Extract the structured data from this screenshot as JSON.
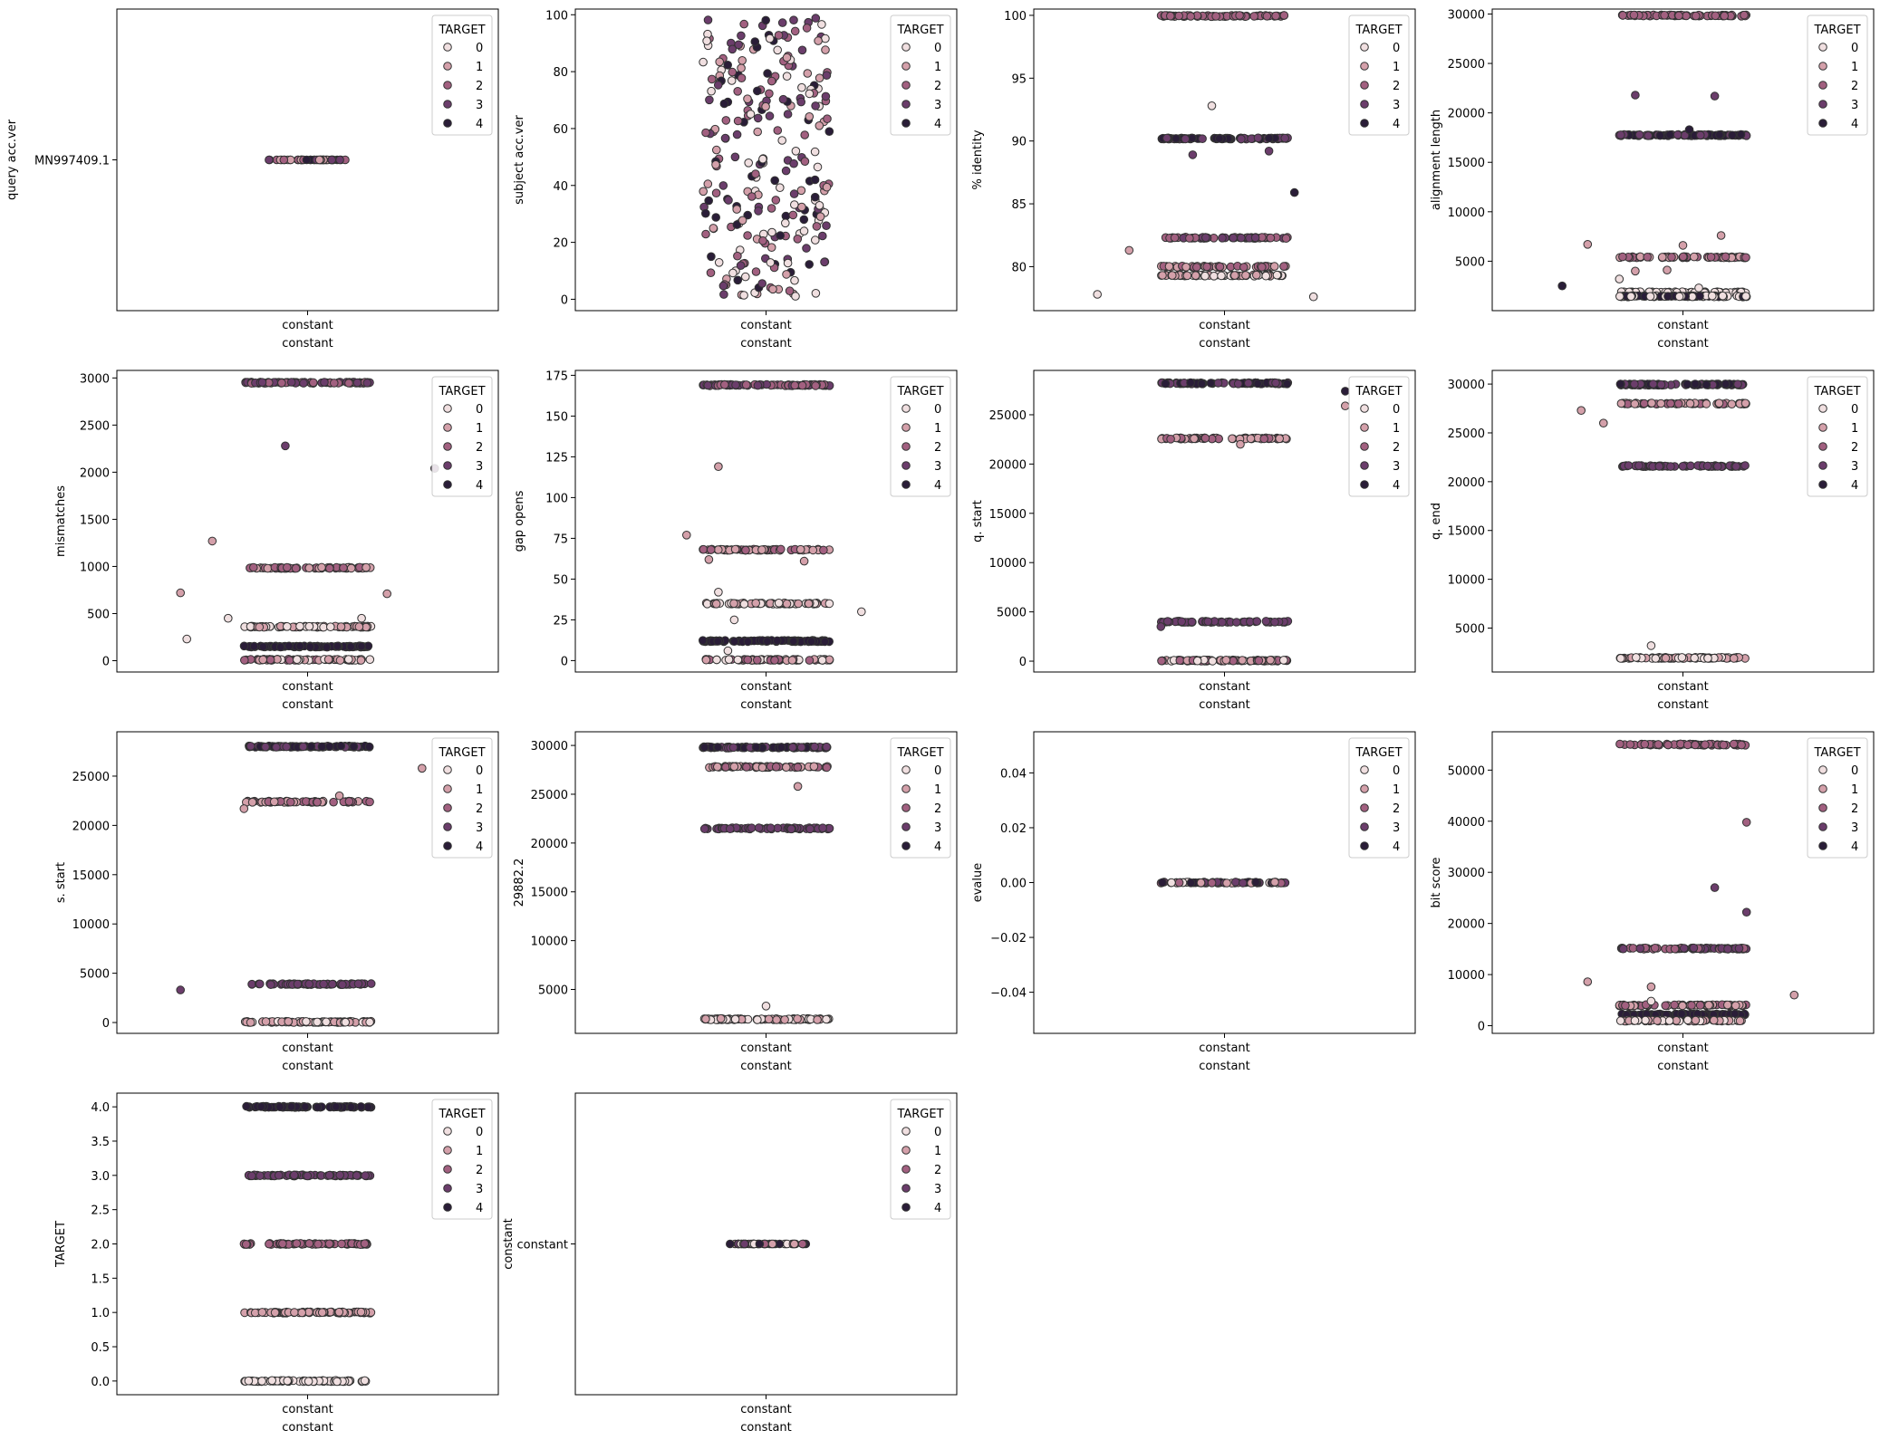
{
  "figure": {
    "type": "strip-plot grid",
    "x_category": "constant",
    "xlabel": "constant",
    "legend": {
      "title": "TARGET",
      "entries": [
        "0",
        "1",
        "2",
        "3",
        "4"
      ],
      "placement": "upper right"
    },
    "palette": {
      "0": "#f0dfe0",
      "1": "#d4a0aa",
      "2": "#a26080",
      "3": "#6b3d6b",
      "4": "#2a1d38"
    },
    "edge_color": "#333333"
  },
  "chart_data": [
    {
      "type": "scatter",
      "id": "p1",
      "ylabel": "query acc.ver",
      "categorical_y": true,
      "ytick_labels": [
        "MN997409.1"
      ],
      "xticks": [
        "constant"
      ],
      "xlabel": "constant",
      "bands": [
        {
          "y": "MN997409.1",
          "width": 0.25,
          "count": 46,
          "mix": [
            0,
            1,
            2,
            3,
            4
          ]
        }
      ],
      "outliers": []
    },
    {
      "type": "scatter",
      "id": "p2",
      "ylabel": "subject acc.ver",
      "ylim": [
        -4,
        102
      ],
      "yticks": [
        0,
        20,
        40,
        60,
        80,
        100
      ],
      "xticks": [
        "constant"
      ],
      "xlabel": "constant",
      "bands": [
        {
          "y": 50,
          "spread_y": 98,
          "width": 0.4,
          "count": 260,
          "mix": [
            0,
            1,
            2,
            3,
            4
          ],
          "uniform": true
        }
      ],
      "outliers": []
    },
    {
      "type": "scatter",
      "id": "p3",
      "ylabel": "% identity",
      "ylim": [
        76.5,
        100.5
      ],
      "yticks": [
        80,
        85,
        90,
        95,
        100
      ],
      "xticks": [
        "constant"
      ],
      "xlabel": "constant",
      "bands": [
        {
          "y": 99.95,
          "width": 0.4,
          "count": 70,
          "mix": [
            2
          ]
        },
        {
          "y": 90.2,
          "width": 0.4,
          "count": 80,
          "mix": [
            4,
            3
          ]
        },
        {
          "y": 82.3,
          "width": 0.4,
          "count": 60,
          "mix": [
            3,
            2
          ]
        },
        {
          "y": 80.0,
          "width": 0.4,
          "count": 50,
          "mix": [
            1,
            2
          ]
        },
        {
          "y": 79.3,
          "width": 0.4,
          "count": 60,
          "mix": [
            0,
            1
          ]
        }
      ],
      "outliers": [
        {
          "y": 92.8,
          "x": -0.04,
          "t": 0
        },
        {
          "y": 88.9,
          "x": -0.1,
          "t": 3
        },
        {
          "y": 89.2,
          "x": 0.14,
          "t": 3
        },
        {
          "y": 85.9,
          "x": 0.22,
          "t": 4
        },
        {
          "y": 81.3,
          "x": -0.3,
          "t": 1
        },
        {
          "y": 77.8,
          "x": -0.4,
          "t": 0
        },
        {
          "y": 77.6,
          "x": 0.28,
          "t": 0
        }
      ]
    },
    {
      "type": "scatter",
      "id": "p4",
      "ylabel": "alignment length",
      "ylim": [
        0,
        30500
      ],
      "yticks": [
        5000,
        10000,
        15000,
        20000,
        25000,
        30000
      ],
      "xticks": [
        "constant"
      ],
      "xlabel": "constant",
      "bands": [
        {
          "y": 29850,
          "width": 0.4,
          "count": 70,
          "mix": [
            2
          ]
        },
        {
          "y": 17750,
          "width": 0.4,
          "count": 80,
          "mix": [
            3,
            4
          ]
        },
        {
          "y": 5400,
          "width": 0.4,
          "count": 60,
          "mix": [
            1,
            2
          ]
        },
        {
          "y": 1850,
          "width": 0.4,
          "count": 70,
          "mix": [
            0
          ]
        },
        {
          "y": 1450,
          "width": 0.4,
          "count": 80,
          "mix": [
            4,
            0
          ]
        }
      ],
      "outliers": [
        {
          "y": 21800,
          "x": -0.15,
          "t": 3
        },
        {
          "y": 21700,
          "x": 0.1,
          "t": 3
        },
        {
          "y": 18300,
          "x": 0.02,
          "t": 4
        },
        {
          "y": 7600,
          "x": 0.12,
          "t": 1
        },
        {
          "y": 6700,
          "x": -0.3,
          "t": 1
        },
        {
          "y": 6600,
          "x": 0.0,
          "t": 1
        },
        {
          "y": 4100,
          "x": -0.05,
          "t": 1
        },
        {
          "y": 4000,
          "x": -0.15,
          "t": 1
        },
        {
          "y": 3200,
          "x": -0.2,
          "t": 0
        },
        {
          "y": 2500,
          "x": -0.38,
          "t": 4
        },
        {
          "y": 2300,
          "x": 0.05,
          "t": 0
        }
      ]
    },
    {
      "type": "scatter",
      "id": "p5",
      "ylabel": "mismatches",
      "ylim": [
        -120,
        3080
      ],
      "yticks": [
        0,
        500,
        1000,
        1500,
        2000,
        2500,
        3000
      ],
      "xticks": [
        "constant"
      ],
      "xlabel": "constant",
      "bands": [
        {
          "y": 2950,
          "width": 0.4,
          "count": 80,
          "mix": [
            3,
            2
          ]
        },
        {
          "y": 985,
          "width": 0.4,
          "count": 60,
          "mix": [
            1,
            2
          ]
        },
        {
          "y": 360,
          "width": 0.4,
          "count": 70,
          "mix": [
            0,
            1
          ]
        },
        {
          "y": 150,
          "width": 0.4,
          "count": 80,
          "mix": [
            4
          ]
        },
        {
          "y": 10,
          "width": 0.4,
          "count": 60,
          "mix": [
            1,
            2,
            0
          ]
        }
      ],
      "outliers": [
        {
          "y": 2280,
          "x": -0.07,
          "t": 3
        },
        {
          "y": 2040,
          "x": 0.4,
          "t": 3
        },
        {
          "y": 1270,
          "x": -0.3,
          "t": 1
        },
        {
          "y": 720,
          "x": -0.4,
          "t": 1
        },
        {
          "y": 710,
          "x": 0.25,
          "t": 1
        },
        {
          "y": 450,
          "x": -0.25,
          "t": 0
        },
        {
          "y": 450,
          "x": 0.17,
          "t": 0
        },
        {
          "y": 230,
          "x": -0.38,
          "t": 0
        }
      ]
    },
    {
      "type": "scatter",
      "id": "p6",
      "ylabel": "gap opens",
      "ylim": [
        -7,
        178
      ],
      "yticks": [
        0,
        25,
        50,
        75,
        100,
        125,
        150,
        175
      ],
      "xticks": [
        "constant"
      ],
      "xlabel": "constant",
      "bands": [
        {
          "y": 169,
          "width": 0.4,
          "count": 80,
          "mix": [
            3,
            2
          ]
        },
        {
          "y": 68,
          "width": 0.4,
          "count": 60,
          "mix": [
            1,
            2
          ]
        },
        {
          "y": 35,
          "width": 0.4,
          "count": 60,
          "mix": [
            0,
            1
          ]
        },
        {
          "y": 12,
          "width": 0.4,
          "count": 80,
          "mix": [
            4
          ]
        },
        {
          "y": 0.5,
          "width": 0.4,
          "count": 70,
          "mix": [
            1,
            2,
            0
          ]
        }
      ],
      "outliers": [
        {
          "y": 119,
          "x": -0.15,
          "t": 1
        },
        {
          "y": 77,
          "x": -0.25,
          "t": 1
        },
        {
          "y": 62,
          "x": -0.18,
          "t": 1
        },
        {
          "y": 61,
          "x": 0.12,
          "t": 1
        },
        {
          "y": 42,
          "x": -0.15,
          "t": 0
        },
        {
          "y": 30,
          "x": 0.3,
          "t": 0
        },
        {
          "y": 25,
          "x": -0.1,
          "t": 0
        },
        {
          "y": 6,
          "x": -0.12,
          "t": 0
        }
      ]
    },
    {
      "type": "scatter",
      "id": "p7",
      "ylabel": "q. start",
      "ylim": [
        -1100,
        29500
      ],
      "yticks": [
        0,
        5000,
        10000,
        15000,
        20000,
        25000
      ],
      "xticks": [
        "constant"
      ],
      "xlabel": "constant",
      "bands": [
        {
          "y": 28200,
          "width": 0.4,
          "count": 80,
          "mix": [
            4,
            3
          ]
        },
        {
          "y": 22600,
          "width": 0.4,
          "count": 60,
          "mix": [
            1,
            2
          ]
        },
        {
          "y": 4000,
          "width": 0.4,
          "count": 60,
          "mix": [
            3
          ]
        },
        {
          "y": 60,
          "width": 0.4,
          "count": 90,
          "mix": [
            0,
            1,
            2
          ]
        }
      ],
      "outliers": [
        {
          "y": 27400,
          "x": 0.38,
          "t": 4
        },
        {
          "y": 25900,
          "x": 0.38,
          "t": 1
        },
        {
          "y": 22000,
          "x": 0.05,
          "t": 1
        },
        {
          "y": 3500,
          "x": -0.2,
          "t": 3
        }
      ]
    },
    {
      "type": "scatter",
      "id": "p8",
      "ylabel": "q. end",
      "ylim": [
        500,
        31400
      ],
      "yticks": [
        5000,
        10000,
        15000,
        20000,
        25000,
        30000
      ],
      "xticks": [
        "constant"
      ],
      "xlabel": "constant",
      "bands": [
        {
          "y": 29950,
          "width": 0.4,
          "count": 90,
          "mix": [
            4,
            3
          ]
        },
        {
          "y": 28000,
          "width": 0.4,
          "count": 60,
          "mix": [
            1,
            2
          ]
        },
        {
          "y": 21600,
          "width": 0.4,
          "count": 60,
          "mix": [
            3
          ]
        },
        {
          "y": 1950,
          "width": 0.4,
          "count": 80,
          "mix": [
            0,
            1
          ]
        }
      ],
      "outliers": [
        {
          "y": 26000,
          "x": -0.25,
          "t": 1
        },
        {
          "y": 27300,
          "x": -0.32,
          "t": 1
        },
        {
          "y": 3200,
          "x": -0.1,
          "t": 0
        }
      ]
    },
    {
      "type": "scatter",
      "id": "p9",
      "ylabel": "s. start",
      "ylim": [
        -1100,
        29500
      ],
      "yticks": [
        0,
        5000,
        10000,
        15000,
        20000,
        25000
      ],
      "xticks": [
        "constant"
      ],
      "xlabel": "constant",
      "bands": [
        {
          "y": 28000,
          "width": 0.4,
          "count": 90,
          "mix": [
            4,
            3
          ]
        },
        {
          "y": 22400,
          "width": 0.4,
          "count": 60,
          "mix": [
            1,
            2
          ]
        },
        {
          "y": 3900,
          "width": 0.4,
          "count": 60,
          "mix": [
            3
          ]
        },
        {
          "y": 60,
          "width": 0.4,
          "count": 90,
          "mix": [
            0,
            1
          ]
        }
      ],
      "outliers": [
        {
          "y": 25800,
          "x": 0.36,
          "t": 1
        },
        {
          "y": 23000,
          "x": 0.1,
          "t": 1
        },
        {
          "y": 21700,
          "x": -0.2,
          "t": 1
        },
        {
          "y": 3300,
          "x": -0.4,
          "t": 3
        }
      ]
    },
    {
      "type": "scatter",
      "id": "p10",
      "ylabel": "29882.2",
      "ylim": [
        500,
        31400
      ],
      "yticks": [
        5000,
        10000,
        15000,
        20000,
        25000,
        30000
      ],
      "xticks": [
        "constant"
      ],
      "xlabel": "constant",
      "bands": [
        {
          "y": 29800,
          "width": 0.4,
          "count": 90,
          "mix": [
            4,
            3
          ]
        },
        {
          "y": 27800,
          "width": 0.4,
          "count": 60,
          "mix": [
            1,
            2
          ]
        },
        {
          "y": 21500,
          "width": 0.4,
          "count": 60,
          "mix": [
            3
          ]
        },
        {
          "y": 1950,
          "width": 0.4,
          "count": 80,
          "mix": [
            0,
            1
          ]
        }
      ],
      "outliers": [
        {
          "y": 25800,
          "x": 0.1,
          "t": 1
        },
        {
          "y": 3300,
          "x": 0.0,
          "t": 0
        }
      ]
    },
    {
      "type": "scatter",
      "id": "p11",
      "ylabel": "evalue",
      "ylim": [
        -0.055,
        0.055
      ],
      "yticks": [
        -0.04,
        -0.02,
        0.0,
        0.02,
        0.04
      ],
      "ytick_format": "fixed2",
      "xticks": [
        "constant"
      ],
      "xlabel": "constant",
      "bands": [
        {
          "y": 0,
          "width": 0.4,
          "count": 60,
          "mix": [
            0,
            1,
            2,
            3,
            4
          ]
        }
      ],
      "outliers": []
    },
    {
      "type": "scatter",
      "id": "p12",
      "ylabel": "bit score",
      "ylim": [
        -1500,
        57500
      ],
      "yticks": [
        0,
        10000,
        20000,
        30000,
        40000,
        50000
      ],
      "xticks": [
        "constant"
      ],
      "xlabel": "constant",
      "bands": [
        {
          "y": 55000,
          "width": 0.4,
          "count": 60,
          "mix": [
            2
          ]
        },
        {
          "y": 15100,
          "width": 0.4,
          "count": 70,
          "mix": [
            3,
            2
          ]
        },
        {
          "y": 4000,
          "width": 0.4,
          "count": 60,
          "mix": [
            1,
            2
          ]
        },
        {
          "y": 2200,
          "width": 0.4,
          "count": 80,
          "mix": [
            4
          ]
        },
        {
          "y": 1000,
          "width": 0.4,
          "count": 70,
          "mix": [
            0,
            1
          ]
        }
      ],
      "outliers": [
        {
          "y": 39800,
          "x": 0.2,
          "t": 2
        },
        {
          "y": 27000,
          "x": 0.1,
          "t": 3
        },
        {
          "y": 22200,
          "x": 0.2,
          "t": 3
        },
        {
          "y": 8600,
          "x": -0.3,
          "t": 1
        },
        {
          "y": 7600,
          "x": -0.1,
          "t": 1
        },
        {
          "y": 6000,
          "x": 0.35,
          "t": 1
        },
        {
          "y": 4800,
          "x": -0.1,
          "t": 0
        }
      ]
    },
    {
      "type": "scatter",
      "id": "p13",
      "ylabel": "TARGET",
      "ylim": [
        -0.2,
        4.2
      ],
      "yticks": [
        0.0,
        0.5,
        1.0,
        1.5,
        2.0,
        2.5,
        3.0,
        3.5,
        4.0
      ],
      "ytick_format": "fixed1",
      "xticks": [
        "constant"
      ],
      "xlabel": "constant",
      "bands": [
        {
          "y": 4,
          "width": 0.4,
          "count": 80,
          "mix": [
            4
          ]
        },
        {
          "y": 3,
          "width": 0.4,
          "count": 70,
          "mix": [
            3
          ]
        },
        {
          "y": 2,
          "width": 0.4,
          "count": 60,
          "mix": [
            2
          ]
        },
        {
          "y": 1,
          "width": 0.4,
          "count": 70,
          "mix": [
            1
          ]
        },
        {
          "y": 0,
          "width": 0.4,
          "count": 70,
          "mix": [
            0
          ]
        }
      ],
      "outliers": []
    },
    {
      "type": "scatter",
      "id": "p14",
      "ylabel": "constant",
      "categorical_y": true,
      "ytick_labels": [
        "constant"
      ],
      "xticks": [
        "constant"
      ],
      "xlabel": "constant",
      "bands": [
        {
          "y": "constant",
          "width": 0.25,
          "count": 46,
          "mix": [
            0,
            1,
            2,
            3,
            4
          ]
        }
      ],
      "outliers": []
    }
  ]
}
